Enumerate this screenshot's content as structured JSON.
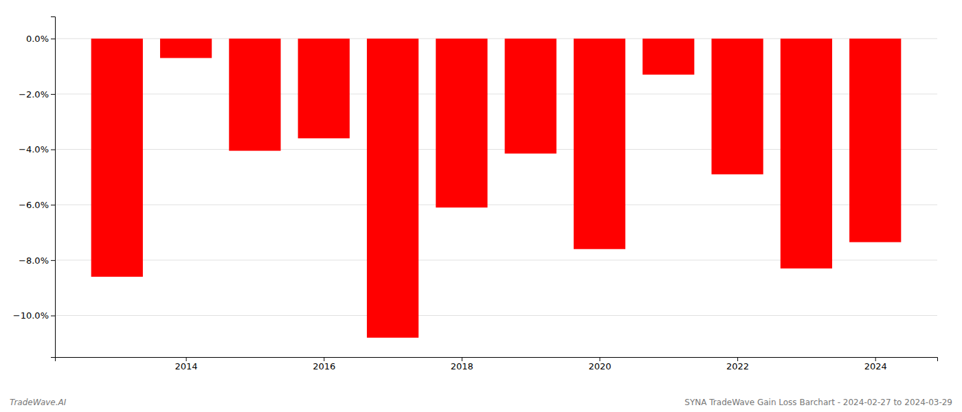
{
  "chart_data": {
    "type": "bar",
    "x": [
      2013,
      2014,
      2015,
      2016,
      2017,
      2018,
      2019,
      2020,
      2021,
      2022,
      2023,
      2024
    ],
    "values": [
      -8.6,
      -0.7,
      -4.05,
      -3.6,
      -10.8,
      -6.1,
      -4.15,
      -7.6,
      -1.3,
      -4.9,
      -8.3,
      -7.35
    ],
    "color": "#ff0000",
    "xlim": [
      2012.1,
      2024.9
    ],
    "xticks": [
      2014,
      2016,
      2018,
      2020,
      2022,
      2024
    ],
    "ylim": [
      -11.5,
      0.8
    ],
    "yticks": [
      {
        "value": 0.0,
        "label": "0.0%"
      },
      {
        "value": -2.0,
        "label": "−2.0%"
      },
      {
        "value": -4.0,
        "label": "−4.0%"
      },
      {
        "value": -6.0,
        "label": "−6.0%"
      },
      {
        "value": -8.0,
        "label": "−8.0%"
      },
      {
        "value": -10.0,
        "label": "−10.0%"
      }
    ],
    "grid": true,
    "annotations": [
      "TradeWave.AI",
      "SYNA TradeWave Gain Loss Barchart - 2024-02-27 to 2024-03-29"
    ]
  }
}
